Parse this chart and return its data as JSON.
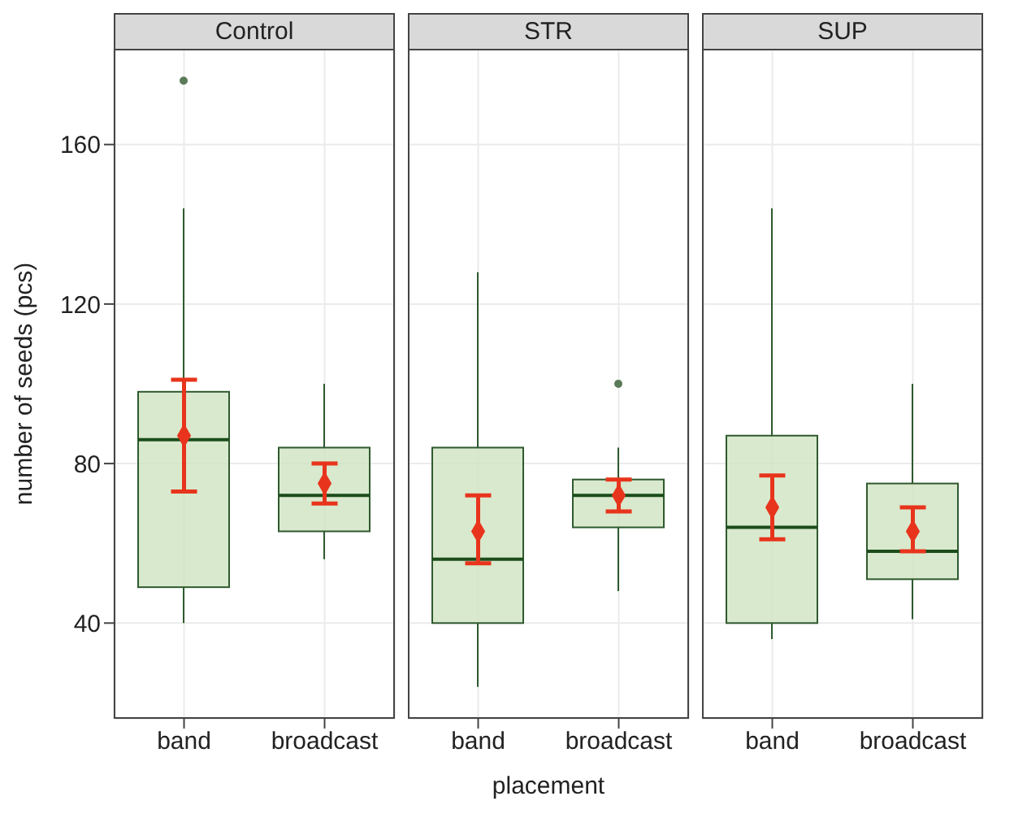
{
  "chart_data": [
    {
      "type": "box",
      "title": "Control",
      "ylabel": "number of seeds (pcs)",
      "categories": [
        "band",
        "broadcast"
      ],
      "ylim": [
        16,
        184
      ],
      "yticks": [
        40,
        80,
        120,
        160
      ],
      "grid": true,
      "series": [
        {
          "color": "#cfe3c0",
          "boxes": [
            {
              "low": 40,
              "q1": 49,
              "median": 86,
              "q3": 98,
              "high": 144,
              "outliers": [
                176
              ]
            },
            {
              "low": 56,
              "q1": 63,
              "median": 72,
              "q3": 84,
              "high": 100
            }
          ]
        },
        {
          "type": "scatter",
          "color": "#e8341c",
          "x": [
            "band",
            "broadcast"
          ],
          "values": [
            87,
            75
          ],
          "errors": [
            [
              73,
              101
            ],
            [
              70,
              80
            ]
          ],
          "marker": "diamond"
        }
      ]
    },
    {
      "type": "box",
      "title": "STR",
      "xlabel": "placement",
      "categories": [
        "band",
        "broadcast"
      ],
      "ylim": [
        16,
        184
      ],
      "yticks": [
        40,
        80,
        120,
        160
      ],
      "grid": true,
      "tick_labels": "x",
      "series": [
        {
          "color": "#cfe3c0",
          "boxes": [
            {
              "low": 24,
              "q1": 40,
              "median": 56,
              "q3": 84,
              "high": 128
            },
            {
              "low": 48,
              "q1": 64,
              "median": 72,
              "q3": 76,
              "high": 84,
              "outliers": [
                100
              ]
            }
          ]
        },
        {
          "type": "scatter",
          "color": "#e8341c",
          "x": [
            "band",
            "broadcast"
          ],
          "values": [
            63,
            72
          ],
          "errors": [
            [
              55,
              72
            ],
            [
              68,
              76
            ]
          ],
          "marker": "diamond"
        }
      ]
    },
    {
      "type": "box",
      "title": "SUP",
      "categories": [
        "band",
        "broadcast"
      ],
      "ylim": [
        16,
        184
      ],
      "yticks": [
        40,
        80,
        120,
        160
      ],
      "grid": true,
      "tick_labels": "x",
      "series": [
        {
          "color": "#cfe3c0",
          "boxes": [
            {
              "low": 36,
              "q1": 40,
              "median": 64,
              "q3": 87,
              "high": 144
            },
            {
              "low": 41,
              "q1": 51,
              "median": 58,
              "q3": 75,
              "high": 100
            }
          ]
        },
        {
          "type": "scatter",
          "color": "#e8341c",
          "x": [
            "band",
            "broadcast"
          ],
          "values": [
            69,
            63
          ],
          "errors": [
            [
              61,
              77
            ],
            [
              58,
              69
            ]
          ],
          "marker": "diamond"
        }
      ]
    }
  ]
}
